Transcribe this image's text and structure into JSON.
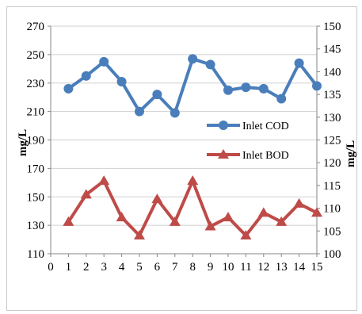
{
  "chart_data": {
    "type": "line",
    "x": [
      1,
      2,
      3,
      4,
      5,
      6,
      7,
      8,
      9,
      10,
      11,
      12,
      13,
      14,
      15
    ],
    "x_ticks": [
      0,
      1,
      2,
      3,
      4,
      5,
      6,
      7,
      8,
      9,
      10,
      11,
      12,
      13,
      14,
      15
    ],
    "xlim": [
      0,
      15
    ],
    "ylabel_left": "mg/L",
    "ylabel_right": "mg/L",
    "ylim_left": [
      110,
      270
    ],
    "y_ticks_left": [
      110,
      130,
      150,
      170,
      190,
      210,
      230,
      250,
      270
    ],
    "ylim_right": [
      100,
      150
    ],
    "y_ticks_right": [
      100,
      105,
      110,
      115,
      120,
      125,
      130,
      135,
      140,
      145,
      150
    ],
    "grid": "horizontal",
    "legend": "right-middle",
    "series": [
      {
        "name": "Inlet COD",
        "axis": "left",
        "color": "#4a7ebb",
        "marker": "circle",
        "values": [
          226,
          235,
          245,
          231,
          210,
          222,
          209,
          247,
          243,
          225,
          227,
          226,
          219,
          244,
          228
        ]
      },
      {
        "name": "Inlet BOD",
        "axis": "right",
        "color": "#be4b48",
        "marker": "triangle",
        "values": [
          107,
          113,
          116,
          108,
          104,
          112,
          107,
          116,
          106,
          108,
          104,
          109,
          107,
          111,
          109
        ]
      }
    ]
  }
}
